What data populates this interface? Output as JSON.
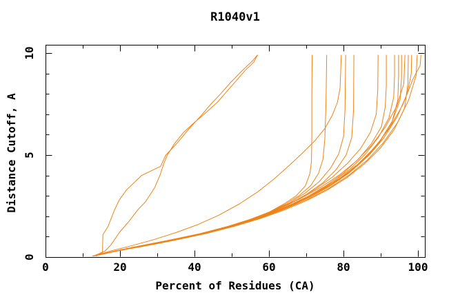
{
  "chart_data": {
    "type": "line",
    "title": "R1040v1",
    "xlabel": "Percent of Residues (CA)",
    "ylabel": "Distance Cutoff, A",
    "xlim": [
      0,
      101.9
    ],
    "ylim": [
      0,
      10.37
    ],
    "x_tick_labels": [
      0,
      20,
      40,
      60,
      80,
      100
    ],
    "x_minor_tick_step": 10,
    "y_tick_labels": [
      0,
      5,
      10
    ],
    "y_minor_tick_step": 1,
    "grid": false,
    "legend": "none",
    "background": "#ffffff",
    "axis_color": "#000000",
    "series_color": "#ef8318",
    "series": [
      {
        "points": [
          [
            12.8,
            0.05
          ],
          [
            14.2,
            0.15
          ],
          [
            15.3,
            0.25
          ],
          [
            15.4,
            1.1
          ],
          [
            16.8,
            1.5
          ],
          [
            18.5,
            2.3
          ],
          [
            19.8,
            2.8
          ],
          [
            21.8,
            3.3
          ],
          [
            25.8,
            4.0
          ],
          [
            30.9,
            4.45
          ],
          [
            32.3,
            5.0
          ],
          [
            35.4,
            5.6
          ],
          [
            38.6,
            6.3
          ],
          [
            41.6,
            6.9
          ],
          [
            44.4,
            7.5
          ],
          [
            47.0,
            8.0
          ],
          [
            49.4,
            8.5
          ],
          [
            52.6,
            9.1
          ],
          [
            55.5,
            9.6
          ],
          [
            56.9,
            9.9
          ]
        ]
      },
      {
        "points": [
          [
            13.6,
            0.05
          ],
          [
            16.0,
            0.3
          ],
          [
            17.6,
            0.6
          ],
          [
            19.8,
            1.2
          ],
          [
            22.4,
            1.75
          ],
          [
            24.7,
            2.3
          ],
          [
            26.8,
            2.7
          ],
          [
            29.3,
            3.4
          ],
          [
            30.7,
            4.0
          ],
          [
            31.8,
            4.6
          ],
          [
            32.7,
            5.0
          ],
          [
            34.6,
            5.55
          ],
          [
            37.0,
            6.1
          ],
          [
            40.0,
            6.6
          ],
          [
            43.2,
            7.1
          ],
          [
            46.2,
            7.6
          ],
          [
            48.6,
            8.1
          ],
          [
            51.0,
            8.6
          ],
          [
            53.6,
            9.15
          ],
          [
            55.9,
            9.55
          ],
          [
            56.9,
            9.9
          ]
        ]
      },
      {
        "points": [
          [
            14.0,
            0.1
          ],
          [
            22,
            0.4
          ],
          [
            31,
            0.7
          ],
          [
            40,
            1.05
          ],
          [
            48,
            1.45
          ],
          [
            55,
            1.85
          ],
          [
            60,
            2.2
          ],
          [
            64,
            2.6
          ],
          [
            67.3,
            3.0
          ],
          [
            69.8,
            3.5
          ],
          [
            71.0,
            4.1
          ],
          [
            71.4,
            4.7
          ],
          [
            71.5,
            6.0
          ],
          [
            71.5,
            8.0
          ],
          [
            71.6,
            9.9
          ]
        ]
      },
      {
        "points": [
          [
            13.4,
            0.08
          ],
          [
            21,
            0.37
          ],
          [
            30,
            0.66
          ],
          [
            39,
            1.0
          ],
          [
            47,
            1.38
          ],
          [
            54,
            1.78
          ],
          [
            59.5,
            2.15
          ],
          [
            64,
            2.55
          ],
          [
            68,
            3.0
          ],
          [
            71.2,
            3.5
          ],
          [
            73.3,
            4.1
          ],
          [
            74.5,
            4.8
          ],
          [
            75.0,
            5.8
          ],
          [
            75.3,
            7.5
          ],
          [
            75.5,
            9.9
          ]
        ]
      },
      {
        "points": [
          [
            13.0,
            0.05
          ],
          [
            17.5,
            0.3
          ],
          [
            23,
            0.55
          ],
          [
            29,
            0.85
          ],
          [
            35,
            1.2
          ],
          [
            41,
            1.6
          ],
          [
            46.5,
            2.05
          ],
          [
            52,
            2.6
          ],
          [
            57,
            3.2
          ],
          [
            61.5,
            3.85
          ],
          [
            65.5,
            4.5
          ],
          [
            69,
            5.1
          ],
          [
            72.3,
            5.7
          ],
          [
            75,
            6.3
          ],
          [
            77,
            6.95
          ],
          [
            78.4,
            7.6
          ],
          [
            79.1,
            8.3
          ],
          [
            79.4,
            9.9
          ]
        ]
      },
      {
        "points": [
          [
            14.4,
            0.1
          ],
          [
            22,
            0.42
          ],
          [
            31,
            0.72
          ],
          [
            40,
            1.06
          ],
          [
            48,
            1.44
          ],
          [
            55,
            1.84
          ],
          [
            60.5,
            2.22
          ],
          [
            65.5,
            2.65
          ],
          [
            69.8,
            3.15
          ],
          [
            73.5,
            3.7
          ],
          [
            76.5,
            4.35
          ],
          [
            78.7,
            5.05
          ],
          [
            80.0,
            5.9
          ],
          [
            80.4,
            7.2
          ],
          [
            80.6,
            9.9
          ]
        ]
      },
      {
        "points": [
          [
            13.8,
            0.09
          ],
          [
            21,
            0.38
          ],
          [
            30,
            0.67
          ],
          [
            39,
            1.0
          ],
          [
            47,
            1.37
          ],
          [
            54,
            1.76
          ],
          [
            60,
            2.15
          ],
          [
            65.5,
            2.6
          ],
          [
            70.3,
            3.1
          ],
          [
            74.5,
            3.65
          ],
          [
            78,
            4.28
          ],
          [
            80.7,
            5.0
          ],
          [
            82.2,
            5.85
          ],
          [
            82.7,
            7.2
          ],
          [
            82.8,
            9.9
          ]
        ]
      },
      {
        "points": [
          [
            14.6,
            0.12
          ],
          [
            23,
            0.46
          ],
          [
            32,
            0.78
          ],
          [
            41,
            1.12
          ],
          [
            49,
            1.5
          ],
          [
            56,
            1.9
          ],
          [
            62,
            2.32
          ],
          [
            67.5,
            2.8
          ],
          [
            72.5,
            3.33
          ],
          [
            77,
            3.92
          ],
          [
            81,
            4.58
          ],
          [
            84.5,
            5.3
          ],
          [
            87.2,
            6.1
          ],
          [
            88.8,
            7.0
          ],
          [
            89.2,
            8.2
          ],
          [
            89.3,
            9.9
          ]
        ]
      },
      {
        "points": [
          [
            13.2,
            0.07
          ],
          [
            20,
            0.35
          ],
          [
            28.5,
            0.63
          ],
          [
            37.5,
            0.95
          ],
          [
            45.5,
            1.3
          ],
          [
            52.5,
            1.67
          ],
          [
            59,
            2.06
          ],
          [
            65,
            2.5
          ],
          [
            70.5,
            2.98
          ],
          [
            75.5,
            3.52
          ],
          [
            80,
            4.12
          ],
          [
            84,
            4.8
          ],
          [
            87.5,
            5.56
          ],
          [
            90.2,
            6.4
          ],
          [
            91.2,
            7.35
          ],
          [
            91.5,
            8.4
          ],
          [
            91.5,
            9.9
          ]
        ]
      },
      {
        "points": [
          [
            14.2,
            0.1
          ],
          [
            21.5,
            0.4
          ],
          [
            30.5,
            0.7
          ],
          [
            39.5,
            1.03
          ],
          [
            47.5,
            1.4
          ],
          [
            54.5,
            1.78
          ],
          [
            61,
            2.18
          ],
          [
            66.8,
            2.62
          ],
          [
            72.2,
            3.12
          ],
          [
            77.2,
            3.68
          ],
          [
            81.8,
            4.32
          ],
          [
            85.9,
            5.05
          ],
          [
            89.4,
            5.88
          ],
          [
            92.2,
            6.82
          ],
          [
            93.5,
            7.85
          ],
          [
            93.7,
            8.9
          ],
          [
            93.7,
            9.9
          ]
        ]
      },
      {
        "points": [
          [
            13.6,
            0.08
          ],
          [
            20.5,
            0.36
          ],
          [
            29,
            0.64
          ],
          [
            38,
            0.96
          ],
          [
            46,
            1.32
          ],
          [
            53.5,
            1.7
          ],
          [
            60,
            2.1
          ],
          [
            66,
            2.54
          ],
          [
            71.6,
            3.02
          ],
          [
            76.8,
            3.56
          ],
          [
            81.6,
            4.18
          ],
          [
            86,
            4.9
          ],
          [
            89.9,
            5.72
          ],
          [
            93.1,
            6.66
          ],
          [
            95.2,
            7.72
          ],
          [
            95.6,
            8.8
          ],
          [
            95.6,
            9.9
          ]
        ]
      },
      {
        "points": [
          [
            14.8,
            0.13
          ],
          [
            23.5,
            0.48
          ],
          [
            32.5,
            0.8
          ],
          [
            41.5,
            1.15
          ],
          [
            49.5,
            1.53
          ],
          [
            56.5,
            1.93
          ],
          [
            62.5,
            2.36
          ],
          [
            68.3,
            2.85
          ],
          [
            73.7,
            3.4
          ],
          [
            78.7,
            4.0
          ],
          [
            83.3,
            4.68
          ],
          [
            87.5,
            5.46
          ],
          [
            91.2,
            6.36
          ],
          [
            94.3,
            7.4
          ],
          [
            96.2,
            8.5
          ],
          [
            96.5,
            9.9
          ]
        ]
      },
      {
        "points": [
          [
            12.6,
            0.05
          ],
          [
            18.5,
            0.28
          ],
          [
            26,
            0.52
          ],
          [
            34.5,
            0.82
          ],
          [
            43,
            1.15
          ],
          [
            50.5,
            1.5
          ],
          [
            57.5,
            1.88
          ],
          [
            64,
            2.3
          ],
          [
            70,
            2.76
          ],
          [
            75.6,
            3.28
          ],
          [
            80.8,
            3.88
          ],
          [
            85.6,
            4.56
          ],
          [
            89.9,
            5.34
          ],
          [
            93.6,
            6.24
          ],
          [
            96.4,
            7.3
          ],
          [
            97.3,
            8.5
          ],
          [
            97.4,
            9.9
          ]
        ]
      },
      {
        "points": [
          [
            14.0,
            0.1
          ],
          [
            21,
            0.38
          ],
          [
            29.5,
            0.66
          ],
          [
            38.5,
            0.98
          ],
          [
            46.5,
            1.34
          ],
          [
            54,
            1.72
          ],
          [
            60.5,
            2.12
          ],
          [
            66.5,
            2.56
          ],
          [
            72.2,
            3.06
          ],
          [
            77.5,
            3.62
          ],
          [
            82.4,
            4.26
          ],
          [
            86.9,
            5.0
          ],
          [
            90.9,
            5.86
          ],
          [
            94.4,
            6.88
          ],
          [
            97.1,
            8.0
          ],
          [
            98.2,
            9.0
          ],
          [
            98.3,
            9.9
          ]
        ]
      },
      {
        "points": [
          [
            13.0,
            0.06
          ],
          [
            19,
            0.3
          ],
          [
            26.5,
            0.55
          ],
          [
            35,
            0.85
          ],
          [
            43.5,
            1.18
          ],
          [
            51,
            1.54
          ],
          [
            58,
            1.94
          ],
          [
            64.5,
            2.38
          ],
          [
            70.7,
            2.86
          ],
          [
            76.3,
            3.4
          ],
          [
            81.5,
            4.02
          ],
          [
            86.3,
            4.74
          ],
          [
            90.6,
            5.58
          ],
          [
            94.4,
            6.56
          ],
          [
            97.5,
            7.7
          ],
          [
            99.5,
            8.9
          ],
          [
            99.8,
            9.9
          ]
        ]
      },
      {
        "points": [
          [
            14.4,
            0.11
          ],
          [
            22.5,
            0.44
          ],
          [
            31.5,
            0.75
          ],
          [
            40.5,
            1.08
          ],
          [
            48.5,
            1.46
          ],
          [
            55.5,
            1.86
          ],
          [
            62,
            2.28
          ],
          [
            68,
            2.74
          ],
          [
            73.7,
            3.26
          ],
          [
            79,
            3.86
          ],
          [
            83.9,
            4.56
          ],
          [
            88.4,
            5.38
          ],
          [
            92.4,
            6.34
          ],
          [
            95.9,
            7.46
          ],
          [
            98.6,
            8.7
          ],
          [
            100.6,
            9.4
          ],
          [
            100.8,
            9.9
          ]
        ]
      },
      {
        "points": [
          [
            13.4,
            0.07
          ],
          [
            20,
            0.34
          ],
          [
            28,
            0.6
          ],
          [
            36.5,
            0.9
          ],
          [
            44.5,
            1.24
          ],
          [
            52,
            1.6
          ],
          [
            58.5,
            2.0
          ],
          [
            64.8,
            2.44
          ],
          [
            70.8,
            2.92
          ],
          [
            76.2,
            3.46
          ],
          [
            81.2,
            4.08
          ],
          [
            85.7,
            4.8
          ],
          [
            89.7,
            5.64
          ],
          [
            93,
            6.6
          ],
          [
            94.6,
            7.7
          ],
          [
            94.8,
            8.8
          ],
          [
            94.8,
            9.9
          ]
        ]
      }
    ]
  }
}
